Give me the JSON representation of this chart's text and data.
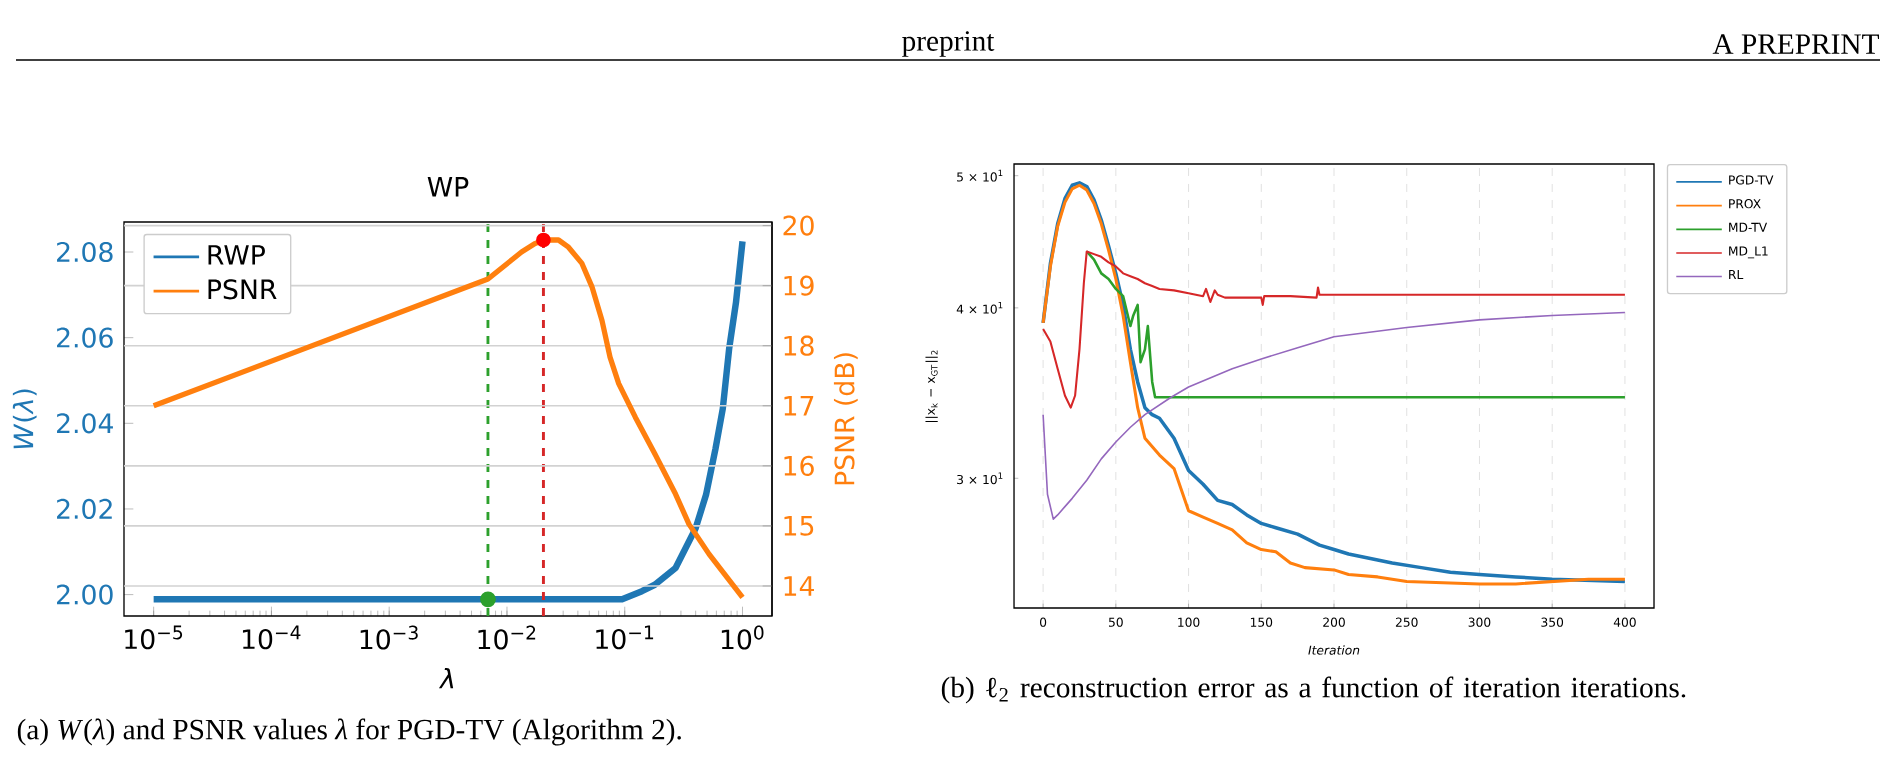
{
  "chart_data": [
    {
      "type": "line",
      "title": "WP",
      "xlabel": "λ",
      "ylabel": "*W*(*λ*)",
      "y2label": "PSNR (dB)",
      "log": "x",
      "xlim": [
        5.6e-06,
        1.78
      ],
      "xticks": [
        {
          "value": 1e-05,
          "label": "10$^{−5}$"
        },
        {
          "value": 0.0001,
          "label": "10$^{−4}$"
        },
        {
          "value": 0.001,
          "label": "10$^{−3}$"
        },
        {
          "value": 0.01,
          "label": "10$^{−2}$"
        },
        {
          "value": 0.1,
          "label": "10$^{−1}$"
        },
        {
          "value": 1,
          "label": "10$^{0}$"
        }
      ],
      "ylim": [
        1.995,
        2.087
      ],
      "yticks": [
        {
          "value": 2.0,
          "label": "2.00"
        },
        2.02,
        2.04,
        2.06,
        2.08
      ],
      "y2lim": [
        13.5,
        20.06
      ],
      "y2ticks": [
        14,
        15,
        16,
        17,
        18,
        19,
        20
      ],
      "grid": "y2",
      "legend": "top left",
      "ref_lines": [
        {
          "axis": "x",
          "value": 0.0069,
          "color": "#2ca02c",
          "line_style": "dashed"
        },
        {
          "axis": "x",
          "value": 0.0204,
          "color": "#d62728",
          "line_style": "dashed"
        }
      ],
      "annotations": [
        "(a) *W*(*λ*) and PSNR values *λ* for PGD-TV (Algorithm 2)."
      ],
      "series": [
        {
          "name": "RWP",
          "color": "#1f77b4",
          "x": [
            1e-05,
            0.095,
            0.14,
            0.18,
            0.27,
            0.4,
            0.49,
            0.59,
            0.68,
            0.77,
            0.88,
            1
          ],
          "values": [
            1.9989,
            1.9989,
            2.0008,
            2.0023,
            2.0062,
            2.0155,
            2.0233,
            2.0341,
            2.0434,
            2.0574,
            2.0682,
            2.0825
          ]
        },
        {
          "name": "PSNR",
          "color": "#ff7f0e",
          "axis": "y2",
          "x": [
            1e-05,
            0.0069,
            0.0133,
            0.0173,
            0.0204,
            0.0274,
            0.0333,
            0.0433,
            0.0527,
            0.0641,
            0.075,
            0.0889,
            0.123,
            0.18,
            0.27,
            0.351,
            0.52,
            1
          ],
          "values": [
            17.0,
            19.11,
            19.56,
            19.7,
            19.76,
            19.76,
            19.64,
            19.37,
            18.98,
            18.42,
            17.81,
            17.37,
            16.81,
            16.2,
            15.53,
            15.03,
            14.53,
            13.81
          ]
        },
        {
          "type": "scatter",
          "marker": "circle",
          "color": "#2ca02c",
          "x": [
            0.0069
          ],
          "values": [
            1.9989
          ]
        },
        {
          "type": "scatter",
          "marker": "circle",
          "color": "#ff0000",
          "axis": "y2",
          "x": [
            0.0204
          ],
          "values": [
            19.76
          ]
        }
      ]
    },
    {
      "type": "line",
      "xlabel": "Iteration",
      "ylabel": "||x$_{k}$ − x$_{GT}$||$_{2}$",
      "log": "y",
      "xlim": [
        -20,
        420
      ],
      "xticks": [
        0,
        50,
        100,
        150,
        200,
        250,
        300,
        350,
        400
      ],
      "ylim": [
        24.1,
        51.0
      ],
      "yticks": [
        {
          "value": 30,
          "label": "3 × 10$^{1}$"
        },
        {
          "value": 40,
          "label": "4 × 10$^{1}$"
        },
        {
          "value": 50,
          "label": "5 × 10$^{1}$"
        }
      ],
      "grid": "x",
      "legend": "right",
      "annotations": [
        "(b) ℓ$_{2}$ reconstruction error as a function of iteration iterations.",
        "preprint",
        "A PREPRINT"
      ],
      "series": [
        {
          "name": "PGD-TV",
          "color": "#1f77b4",
          "x": [
            0,
            5,
            10,
            15,
            20,
            25,
            30,
            35,
            40,
            45,
            50,
            55,
            60,
            65,
            70,
            75,
            80,
            90,
            100,
            110,
            120,
            130,
            140,
            150,
            160,
            175,
            190,
            200,
            210,
            225,
            240,
            260,
            280,
            300,
            325,
            350,
            400
          ],
          "values": [
            39.0,
            43.1,
            46.1,
            48.1,
            49.2,
            49.4,
            49.1,
            48.0,
            46.4,
            44.4,
            42.4,
            40.2,
            37.3,
            35.3,
            33.8,
            33.4,
            33.2,
            32.1,
            30.4,
            29.7,
            28.9,
            28.7,
            28.2,
            27.8,
            27.6,
            27.3,
            26.8,
            26.6,
            26.4,
            26.2,
            26.0,
            25.8,
            25.6,
            25.5,
            25.4,
            25.3,
            25.2
          ]
        },
        {
          "name": "PROX",
          "color": "#ff7f0e",
          "x": [
            0,
            5,
            10,
            15,
            20,
            25,
            30,
            35,
            40,
            45,
            50,
            55,
            60,
            65,
            70,
            80,
            90,
            100,
            110,
            120,
            130,
            140,
            150,
            160,
            170,
            180,
            200,
            210,
            230,
            250,
            300,
            325,
            350,
            375,
            400
          ],
          "values": [
            39.0,
            42.9,
            45.9,
            47.8,
            48.9,
            49.2,
            48.8,
            47.7,
            46.1,
            44.1,
            42.0,
            39.5,
            36.5,
            33.8,
            32.1,
            31.2,
            30.5,
            28.4,
            28.1,
            27.8,
            27.5,
            26.9,
            26.6,
            26.5,
            26.0,
            25.8,
            25.7,
            25.5,
            25.4,
            25.2,
            25.1,
            25.1,
            25.2,
            25.3,
            25.3
          ]
        },
        {
          "name": "MD-TV",
          "color": "#2ca02c",
          "x": [
            30,
            35,
            40,
            45,
            50,
            55,
            60,
            62,
            65,
            67,
            70,
            72,
            75,
            77,
            400
          ],
          "values": [
            44.0,
            43.4,
            42.4,
            42.0,
            41.3,
            40.8,
            38.8,
            39.5,
            40.2,
            36.5,
            37.3,
            38.8,
            35.3,
            34.4,
            34.4
          ]
        },
        {
          "name": "MD_L1",
          "color": "#d62728",
          "x": [
            0,
            5,
            10,
            15,
            19,
            22,
            25,
            28,
            30,
            35,
            40,
            45,
            50,
            55,
            60,
            65,
            70,
            75,
            80,
            90,
            100,
            110,
            112,
            115,
            118,
            120,
            125,
            130,
            150,
            151,
            152,
            170,
            188,
            189,
            190,
            200,
            400
          ],
          "values": [
            38.6,
            37.8,
            36.1,
            34.5,
            33.8,
            34.5,
            37.3,
            41.7,
            44.0,
            43.8,
            43.6,
            43.2,
            42.9,
            42.4,
            42.2,
            42.0,
            41.7,
            41.5,
            41.3,
            41.2,
            41.0,
            40.8,
            41.3,
            40.4,
            41.2,
            40.9,
            40.7,
            40.7,
            40.7,
            40.2,
            40.8,
            40.8,
            40.7,
            41.4,
            40.9,
            40.9,
            40.9
          ]
        },
        {
          "name": "RL",
          "color": "#9467bd",
          "x": [
            0,
            3,
            7,
            10,
            15,
            20,
            30,
            40,
            50,
            60,
            70,
            88,
            100,
            130,
            150,
            175,
            200,
            250,
            300,
            350,
            400
          ],
          "values": [
            33.4,
            29.2,
            28.0,
            28.2,
            28.6,
            29.0,
            29.9,
            31.0,
            31.9,
            32.7,
            33.4,
            34.4,
            35.0,
            36.1,
            36.7,
            37.4,
            38.1,
            38.7,
            39.2,
            39.5,
            39.7
          ]
        }
      ]
    }
  ]
}
